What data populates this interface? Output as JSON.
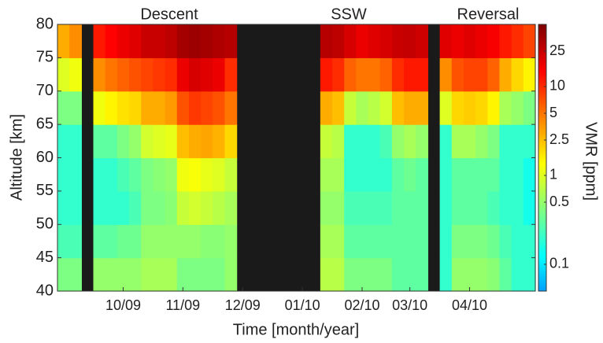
{
  "chart_data": {
    "type": "heatmap",
    "annotations": [
      "Descent",
      "SSW",
      "Reversal"
    ],
    "xlabel": "Time [month/year]",
    "ylabel": "Altitude [km]",
    "zlabel": "VMR [ppm]",
    "categories": [
      null,
      null,
      null,
      null,
      null,
      "10/09",
      null,
      null,
      null,
      null,
      "11/09",
      null,
      null,
      null,
      null,
      "12/09",
      null,
      null,
      null,
      null,
      "01/10",
      null,
      null,
      null,
      null,
      "02/10",
      null,
      null,
      null,
      "03/10",
      null,
      null,
      null,
      null,
      "04/10",
      null,
      null,
      null,
      null,
      null
    ],
    "y": [
      42.5,
      47.5,
      52.5,
      57.5,
      62.5,
      67.5,
      72.5,
      77.5
    ],
    "ylim": [
      40,
      80
    ],
    "yticks": [
      40,
      45,
      50,
      55,
      60,
      65,
      70,
      75,
      80
    ],
    "zscale": "log",
    "zlim": [
      0.05,
      50
    ],
    "zticks": [
      0.1,
      0.5,
      1,
      2.5,
      5,
      10,
      25
    ],
    "colormap": "jet",
    "z": [
      [
        0.4,
        0.4,
        null,
        0.5,
        0.5,
        0.5,
        0.5,
        0.6,
        0.6,
        0.6,
        0.4,
        0.4,
        0.4,
        0.4,
        0.5,
        null,
        null,
        null,
        null,
        null,
        null,
        null,
        0.7,
        0.7,
        0.4,
        0.4,
        0.4,
        0.4,
        0.3,
        0.3,
        0.3,
        null,
        0.2,
        0.5,
        0.5,
        0.5,
        0.45,
        0.3,
        0.2,
        0.2
      ],
      [
        0.25,
        0.25,
        null,
        0.3,
        0.3,
        0.35,
        0.35,
        0.5,
        0.5,
        0.5,
        0.5,
        0.5,
        0.45,
        0.45,
        0.5,
        null,
        null,
        null,
        null,
        null,
        null,
        null,
        0.6,
        0.6,
        0.3,
        0.3,
        0.3,
        0.3,
        0.3,
        0.3,
        0.3,
        null,
        0.2,
        0.4,
        0.4,
        0.4,
        0.35,
        0.25,
        0.2,
        0.2
      ],
      [
        0.2,
        0.2,
        null,
        0.2,
        0.2,
        0.2,
        0.25,
        0.4,
        0.4,
        0.45,
        0.8,
        0.9,
        0.8,
        0.7,
        0.6,
        null,
        null,
        null,
        null,
        null,
        null,
        null,
        0.5,
        0.5,
        0.25,
        0.25,
        0.25,
        0.25,
        0.3,
        0.3,
        0.3,
        null,
        0.2,
        0.3,
        0.3,
        0.3,
        0.25,
        0.2,
        0.2,
        0.15
      ],
      [
        0.2,
        0.2,
        null,
        0.2,
        0.2,
        0.25,
        0.3,
        0.4,
        0.45,
        0.5,
        1.2,
        1.3,
        1.1,
        1,
        0.8,
        null,
        null,
        null,
        null,
        null,
        null,
        null,
        0.6,
        0.6,
        0.2,
        0.2,
        0.2,
        0.2,
        0.3,
        0.35,
        0.3,
        null,
        0.2,
        0.3,
        0.3,
        0.3,
        0.3,
        0.2,
        0.2,
        0.15
      ],
      [
        0.2,
        0.2,
        null,
        0.3,
        0.3,
        0.4,
        0.5,
        0.9,
        1,
        1.1,
        2.5,
        3,
        3.2,
        2.8,
        2,
        null,
        null,
        null,
        null,
        null,
        null,
        null,
        0.8,
        0.7,
        0.2,
        0.2,
        0.2,
        0.25,
        0.5,
        0.6,
        0.5,
        null,
        0.2,
        0.6,
        0.6,
        0.5,
        0.4,
        0.2,
        0.2,
        0.2
      ],
      [
        0.4,
        0.4,
        null,
        1.2,
        1.5,
        1.8,
        2,
        3,
        3,
        3.5,
        7,
        9,
        8,
        7,
        5,
        null,
        null,
        null,
        null,
        null,
        null,
        null,
        3,
        2.5,
        0.8,
        0.6,
        0.7,
        0.9,
        2.5,
        3,
        3,
        null,
        1,
        2,
        2.2,
        2,
        1.5,
        0.6,
        0.5,
        0.4
      ],
      [
        1,
        1.2,
        null,
        4,
        5,
        6,
        7,
        8,
        9,
        10,
        18,
        22,
        20,
        18,
        10,
        null,
        null,
        null,
        null,
        null,
        null,
        null,
        12,
        10,
        6,
        5,
        5,
        6,
        10,
        12,
        12,
        null,
        4,
        7,
        8,
        8,
        6,
        3,
        2,
        1.5
      ],
      [
        3,
        4,
        null,
        12,
        15,
        18,
        20,
        25,
        25,
        28,
        35,
        38,
        35,
        32,
        30,
        null,
        null,
        null,
        null,
        null,
        null,
        null,
        30,
        28,
        22,
        18,
        20,
        22,
        25,
        26,
        24,
        null,
        20,
        18,
        20,
        18,
        16,
        12,
        10,
        8
      ]
    ]
  }
}
